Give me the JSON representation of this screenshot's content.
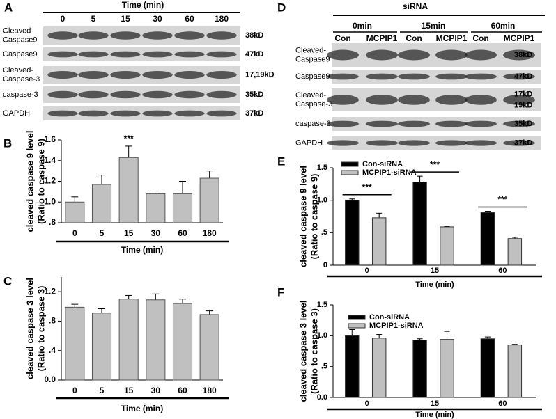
{
  "panel_labels": [
    "A",
    "B",
    "C",
    "D",
    "E",
    "F"
  ],
  "blot_a": {
    "axis_label": "Time (min)",
    "lanes": [
      "0",
      "5",
      "15",
      "30",
      "60",
      "180"
    ],
    "rows": [
      {
        "label": [
          "Cleaved-",
          "Caspase9"
        ],
        "size": [
          "38kD"
        ]
      },
      {
        "label": [
          "Caspase9"
        ],
        "size": [
          "47kD"
        ]
      },
      {
        "label": [
          "Cleaved-",
          "Caspase-3"
        ],
        "size": [
          "17,19kD"
        ]
      },
      {
        "label": [
          "caspase-3"
        ],
        "size": [
          "35kD"
        ]
      },
      {
        "label": [
          "GAPDH"
        ],
        "size": [
          "37kD"
        ]
      }
    ]
  },
  "blot_d": {
    "header": "siRNA",
    "groups": [
      "0min",
      "15min",
      "60min"
    ],
    "lanes": [
      "Con",
      "MCPIP1",
      "Con",
      "MCPIP1",
      "Con",
      "MCPIP1"
    ],
    "rows": [
      {
        "label": [
          "Cleaved-",
          "Caspase9"
        ],
        "size": [
          "38kD"
        ]
      },
      {
        "label": [
          "Caspase9"
        ],
        "size": [
          "47kD"
        ]
      },
      {
        "label": [
          "Cleaved-",
          "Caspase-3"
        ],
        "size": [
          "17kD",
          "19kD"
        ]
      },
      {
        "label": [
          "caspase-3"
        ],
        "size": [
          "35kD"
        ]
      },
      {
        "label": [
          "GAPDH"
        ],
        "size": [
          "37kD"
        ]
      }
    ]
  },
  "chart_data": [
    {
      "type": "bar",
      "y_label": [
        "cleaved caspase 9 level",
        "(Ratio to caspase 9)"
      ],
      "x_label": "Time (min)",
      "categories": [
        "0",
        "5",
        "15",
        "30",
        "60",
        "180"
      ],
      "values": [
        1.0,
        1.17,
        1.43,
        1.08,
        1.08,
        1.23
      ],
      "errors": [
        0.05,
        0.09,
        0.11,
        0.005,
        0.12,
        0.07
      ],
      "color": "#c0c0c0",
      "ylim": [
        0.8,
        1.6
      ],
      "yticks": [
        {
          "value": 0.8,
          "label": ".8"
        },
        {
          "value": 1.0,
          "label": "1.0"
        },
        1.2,
        1.4,
        1.6
      ],
      "annotations": [
        "***"
      ]
    },
    {
      "type": "bar",
      "y_label": [
        "cleaved caspase 3 level",
        "(Ratio to caspase 3)"
      ],
      "x_label": "Time (min)",
      "categories": [
        "0",
        "5",
        "15",
        "30",
        "60",
        "180"
      ],
      "values": [
        0.99,
        0.91,
        1.1,
        1.09,
        1.04,
        0.89
      ],
      "errors": [
        0.04,
        0.06,
        0.05,
        0.08,
        0.06,
        0.05
      ],
      "color": "#c0c0c0",
      "ylim": [
        0,
        1.4
      ],
      "yticks": [
        {
          "value": 0,
          "label": "0.0"
        },
        {
          "value": 0.4,
          "label": ".4"
        },
        {
          "value": 0.8,
          "label": ".8"
        },
        1.2
      ],
      "annotations": []
    },
    {
      "type": "grouped-bar",
      "y_label": [
        "cleaved caspase 9 level",
        "(Ratio to caspase 9)"
      ],
      "x_label": "Time (min)",
      "categories": [
        "0",
        "15",
        "60"
      ],
      "series": [
        {
          "name": "Con-siRNA",
          "color": "#000000",
          "values": [
            1.0,
            1.28,
            0.81
          ],
          "errors": [
            0.02,
            0.09,
            0.02
          ]
        },
        {
          "name": "MCPIP1-siRNA",
          "color": "#c0c0c0",
          "values": [
            0.73,
            0.59,
            0.41
          ],
          "errors": [
            0.07,
            0.01,
            0.02
          ]
        }
      ],
      "ylim": [
        0,
        1.5
      ],
      "yticks": [
        0,
        {
          "value": 0.5,
          "label": ".5"
        },
        {
          "value": 1.0,
          "label": "1.0"
        },
        1.5
      ],
      "annotations": [
        "***",
        "***",
        "***"
      ]
    },
    {
      "type": "grouped-bar",
      "y_label": [
        "cleaved caspase 3 level",
        "(Ratio to caspase 3)"
      ],
      "x_label": "Time (min)",
      "categories": [
        "0",
        "15",
        "60"
      ],
      "series": [
        {
          "name": "Con-siRNA",
          "color": "#000000",
          "values": [
            1.0,
            0.93,
            0.95
          ],
          "errors": [
            0.1,
            0.02,
            0.03
          ]
        },
        {
          "name": "MCPIP1-siRNA",
          "color": "#c0c0c0",
          "values": [
            0.96,
            0.94,
            0.85
          ],
          "errors": [
            0.06,
            0.13,
            0.01
          ]
        }
      ],
      "ylim": [
        0,
        1.5
      ],
      "yticks": [
        {
          "value": 0,
          "label": "0.0"
        },
        {
          "value": 0.5,
          "label": ".5"
        },
        {
          "value": 1.0,
          "label": "1.0"
        },
        1.5
      ],
      "annotations": []
    }
  ]
}
